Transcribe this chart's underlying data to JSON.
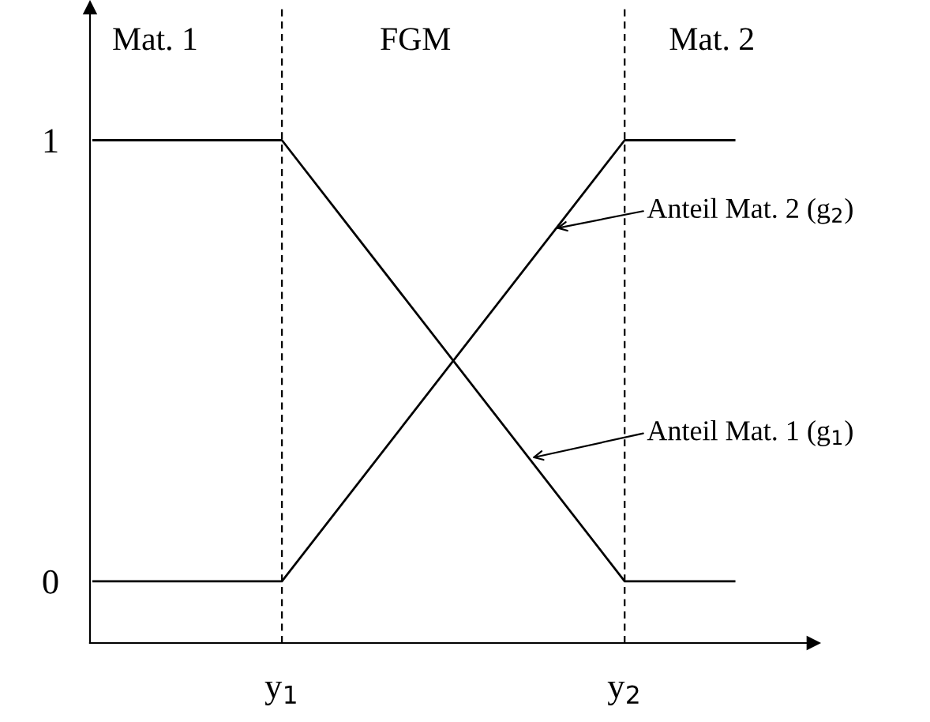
{
  "chart_data": {
    "type": "line",
    "x": [
      0.45,
      1,
      2,
      2.32
    ],
    "series": [
      {
        "color": "#000000",
        "values": [
          1,
          1,
          0,
          0
        ]
      },
      {
        "color": "#000000",
        "values": [
          0,
          0,
          1,
          1
        ]
      }
    ],
    "xlim": [
      0.44,
      2.55
    ],
    "ylim": [
      -0.14,
      1.3
    ],
    "xticks": [
      {
        "value": 1,
        "label": "y$_{1}$"
      },
      {
        "value": 2,
        "label": "y$_{2}$"
      }
    ],
    "yticks": [
      0,
      1
    ],
    "ref_lines": [
      {
        "axis": "x",
        "value": 1,
        "color": "#000000",
        "line_style": "dashed"
      },
      {
        "axis": "x",
        "value": 2,
        "color": "#000000",
        "line_style": "dashed"
      }
    ],
    "annotations": [
      "Mat. 1",
      "FGM",
      "Mat. 2",
      {
        "text": "Anteil Mat. 2 (g$_{2}$)",
        "x": 1.8,
        "y": 0.8
      },
      {
        "text": "Anteil Mat. 1 (g$_{1}$)",
        "x": 1.73,
        "y": 0.28
      }
    ],
    "grid": false,
    "legend": false,
    "marker": "none",
    "line_style": "solid"
  }
}
